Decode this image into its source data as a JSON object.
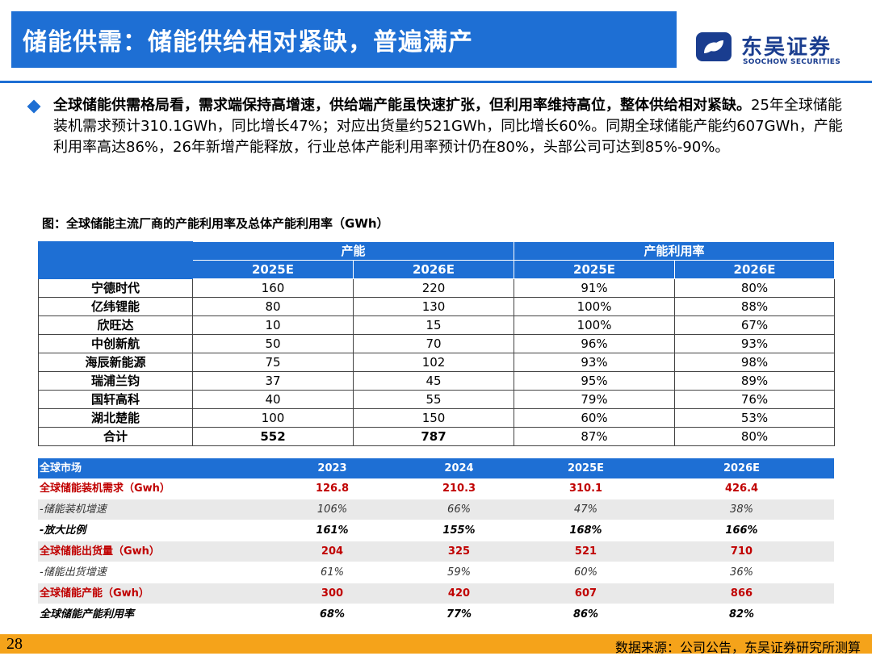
{
  "header": {
    "title": "储能供需：储能供给相对紧缺，普遍满产",
    "logo_cn": "东吴证券",
    "logo_en": "SOOCHOW SECURITIES",
    "brand_color": "#1e6fd4"
  },
  "bullet": {
    "bold": "全球储能供需格局看，需求端保持高增速，供给端产能虽快速扩张，但利用率维持高位，整体供给相对紧缺。",
    "text": "25年全球储能装机需求预计310.1GWh，同比增长47%；对应出货量约521GWh，同比增长60%。同期全球储能产能约607GWh，产能利用率高达86%，26年新增产能释放，行业总体产能利用率预计仍在80%，头部公司可达到85%-90%。"
  },
  "figure": {
    "caption": "图：全球储能主流厂商的产能利用率及总体产能利用率（GWh）"
  },
  "table1": {
    "group_capacity": "产能",
    "group_util": "产能利用率",
    "sub": [
      "2025E",
      "2026E",
      "2025E",
      "2026E"
    ],
    "rows": [
      {
        "name": "宁德时代",
        "c25": "160",
        "c26": "220",
        "u25": "91%",
        "u26": "80%"
      },
      {
        "name": "亿纬锂能",
        "c25": "80",
        "c26": "130",
        "u25": "100%",
        "u26": "88%"
      },
      {
        "name": "欣旺达",
        "c25": "10",
        "c26": "15",
        "u25": "100%",
        "u26": "67%"
      },
      {
        "name": "中创新航",
        "c25": "50",
        "c26": "70",
        "u25": "96%",
        "u26": "93%"
      },
      {
        "name": "海辰新能源",
        "c25": "75",
        "c26": "102",
        "u25": "93%",
        "u26": "98%"
      },
      {
        "name": "瑞浦兰钧",
        "c25": "37",
        "c26": "45",
        "u25": "95%",
        "u26": "89%"
      },
      {
        "name": "国轩高科",
        "c25": "40",
        "c26": "55",
        "u25": "79%",
        "u26": "76%"
      },
      {
        "name": "湖北楚能",
        "c25": "100",
        "c26": "150",
        "u25": "60%",
        "u26": "53%"
      },
      {
        "name": "合计",
        "c25": "552",
        "c26": "787",
        "u25": "87%",
        "u26": "80%"
      }
    ]
  },
  "table2": {
    "headers": [
      "全球市场",
      "2023",
      "2024",
      "2025E",
      "2026E"
    ],
    "rows": [
      {
        "label": "全球储能装机需求（Gwh）",
        "v": [
          "126.8",
          "210.3",
          "310.1",
          "426.4"
        ]
      },
      {
        "label": "-储能装机增速",
        "v": [
          "106%",
          "66%",
          "47%",
          "38%"
        ]
      },
      {
        "label": "-放大比例",
        "v": [
          "161%",
          "155%",
          "168%",
          "166%"
        ]
      },
      {
        "label": "全球储能出货量（Gwh）",
        "v": [
          "204",
          "325",
          "521",
          "710"
        ]
      },
      {
        "label": "-储能出货增速",
        "v": [
          "61%",
          "59%",
          "60%",
          "36%"
        ]
      },
      {
        "label": "全球储能产能（Gwh）",
        "v": [
          "300",
          "420",
          "607",
          "866"
        ]
      },
      {
        "label": "全球储能产能利用率",
        "v": [
          "68%",
          "77%",
          "86%",
          "82%"
        ]
      }
    ]
  },
  "footer": {
    "page": "28",
    "source": "数据来源：公司公告，东吴证券研究所测算"
  }
}
